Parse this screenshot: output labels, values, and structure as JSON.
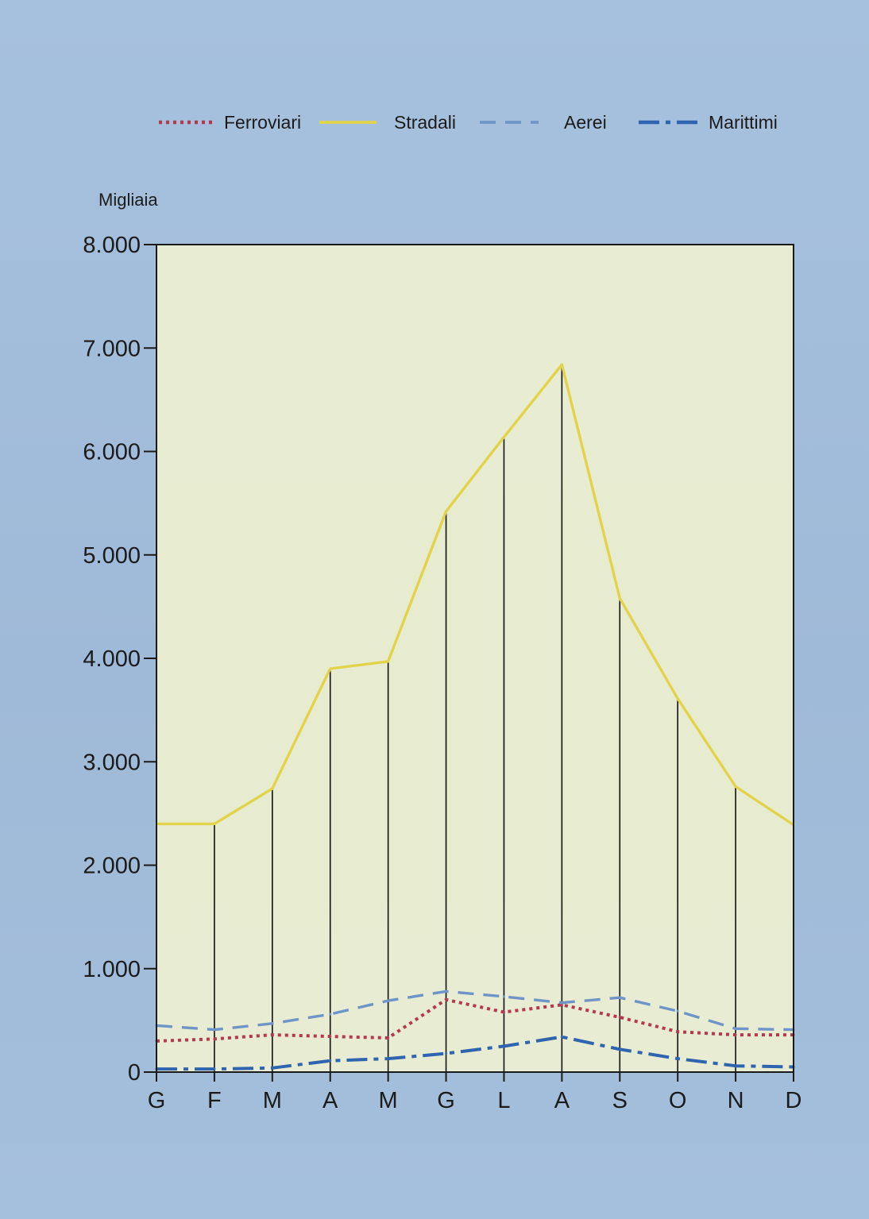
{
  "chart_data": {
    "type": "line",
    "categories": [
      "G",
      "F",
      "M",
      "A",
      "M",
      "G",
      "L",
      "A",
      "S",
      "O",
      "N",
      "D"
    ],
    "series": [
      {
        "name": "Ferroviari",
        "color": "#b5384f",
        "style": "dotted",
        "values": [
          300,
          320,
          360,
          345,
          330,
          700,
          580,
          650,
          530,
          390,
          360,
          360
        ]
      },
      {
        "name": "Stradali",
        "color": "#e2d44a",
        "style": "solid",
        "values": [
          2400,
          2400,
          2740,
          3900,
          3970,
          5420,
          6140,
          6840,
          4580,
          3610,
          2760,
          2390
        ]
      },
      {
        "name": "Aerei",
        "color": "#6f94c8",
        "style": "dashed",
        "values": [
          450,
          410,
          470,
          560,
          690,
          780,
          730,
          670,
          720,
          590,
          420,
          410
        ]
      },
      {
        "name": "Marittimi",
        "color": "#2f64b0",
        "style": "dash-dot",
        "values": [
          30,
          30,
          40,
          110,
          130,
          180,
          250,
          340,
          220,
          130,
          60,
          50
        ]
      }
    ],
    "ylabel": "Migliaia",
    "ylim": [
      0,
      8000
    ],
    "yticks": [
      "0",
      "1.000",
      "2.000",
      "3.000",
      "4.000",
      "5.000",
      "6.000",
      "7.000",
      "8.000"
    ],
    "ytick_values": [
      0,
      1000,
      2000,
      3000,
      4000,
      5000,
      6000,
      7000,
      8000
    ],
    "legend_position": "top",
    "vertical_drop_lines_series": "Stradali",
    "plot_background": "#f6f6cf",
    "grid": false
  }
}
